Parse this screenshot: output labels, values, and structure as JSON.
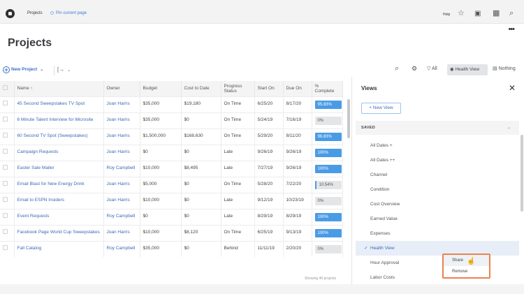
{
  "topbar": {
    "breadcrumb": "Projects",
    "pin_label": "Pin current page",
    "help_label": "Help",
    "icons": [
      "star-icon",
      "square-icon",
      "grid-icon",
      "search-icon"
    ]
  },
  "page": {
    "title": "Projects",
    "more_icon": "•••"
  },
  "toolbar": {
    "new_project_label": "New Project",
    "export_icon": "[→",
    "filter_label": "All",
    "view_label": "Health View",
    "grouping_label": "Nothing"
  },
  "table": {
    "columns": [
      "",
      "Name ↑",
      "Owner",
      "Budget",
      "Cost to Date",
      "Progress Status",
      "Start On",
      "Due On",
      "% Complete"
    ],
    "rows": [
      {
        "name": "45 Second Sweepstakes TV Spot",
        "owner": "Joan Harris",
        "budget": "$35,000",
        "cost": "$19,180",
        "status": "On Time",
        "start": "6/25/20",
        "due": "8/17/20",
        "complete": "95.83%",
        "pct_type": "full"
      },
      {
        "name": "6 Minute Talent Interview for Microsite",
        "owner": "Joan Harris",
        "budget": "$35,000",
        "cost": "$0",
        "status": "On Time",
        "start": "5/24/19",
        "due": "7/16/19",
        "complete": "0%",
        "pct_type": "zero"
      },
      {
        "name": "60 Second TV Spot (Sweepstakes)",
        "owner": "Joan Harris",
        "budget": "$1,500,000",
        "cost": "$168,630",
        "status": "On Time",
        "start": "5/29/20",
        "due": "8/11/20",
        "complete": "96.83%",
        "pct_type": "full"
      },
      {
        "name": "Campaign Requests",
        "owner": "Joan Harris",
        "budget": "$0",
        "cost": "$0",
        "status": "Late",
        "start": "9/26/19",
        "due": "9/26/19",
        "complete": "100%",
        "pct_type": "full"
      },
      {
        "name": "Easter Sale Mailer",
        "owner": "Roy Campbell",
        "budget": "$10,000",
        "cost": "$8,495",
        "status": "Late",
        "start": "7/27/19",
        "due": "9/26/19",
        "complete": "100%",
        "pct_type": "full"
      },
      {
        "name": "Email Blast for New Energy Drink",
        "owner": "Joan Harris",
        "budget": "$5,000",
        "cost": "$0",
        "status": "On Time",
        "start": "5/28/20",
        "due": "7/22/20",
        "complete": "10.54%",
        "pct_type": "part"
      },
      {
        "name": "Email to ESPN Insiders",
        "owner": "Joan Harris",
        "budget": "$10,000",
        "cost": "$0",
        "status": "Late",
        "start": "9/12/19",
        "due": "10/23/19",
        "complete": "0%",
        "pct_type": "zero"
      },
      {
        "name": "Event Requests",
        "owner": "Roy Campbell",
        "budget": "$0",
        "cost": "$0",
        "status": "Late",
        "start": "8/29/19",
        "due": "8/29/19",
        "complete": "100%",
        "pct_type": "full"
      },
      {
        "name": "Facebook Page World Cup Sweepstakes",
        "owner": "Joan Harris",
        "budget": "$10,000",
        "cost": "$8,120",
        "status": "On Time",
        "start": "6/25/19",
        "due": "9/13/19",
        "complete": "100%",
        "pct_type": "full"
      },
      {
        "name": "Fall Catalog",
        "owner": "Roy Campbell",
        "budget": "$35,000",
        "cost": "$0",
        "status": "Behind",
        "start": "11/11/19",
        "due": "2/20/20",
        "complete": "0%",
        "pct_type": "zero"
      }
    ],
    "footer": "Showing 40 projects"
  },
  "views_panel": {
    "title": "Views",
    "new_view_label": "+ New View",
    "section_label": "SAVED",
    "items": [
      {
        "label": "All Dates +",
        "active": false
      },
      {
        "label": "All Dates ++",
        "active": false
      },
      {
        "label": "Channel",
        "active": false
      },
      {
        "label": "Condition",
        "active": false
      },
      {
        "label": "Cost Overview",
        "active": false
      },
      {
        "label": "Earned Value",
        "active": false
      },
      {
        "label": "Expenses",
        "active": false
      },
      {
        "label": "Health View",
        "active": true
      },
      {
        "label": "Hour Approval",
        "active": false
      },
      {
        "label": "Labor Costs",
        "active": false
      }
    ],
    "context_menu": {
      "share_label": "Share",
      "remove_label": "Remove"
    }
  },
  "colors": {
    "accent": "#3a6fc4",
    "progress_bar": "#4a9be6",
    "highlight_border": "#e8834f",
    "active_row": "#e7eef8"
  }
}
